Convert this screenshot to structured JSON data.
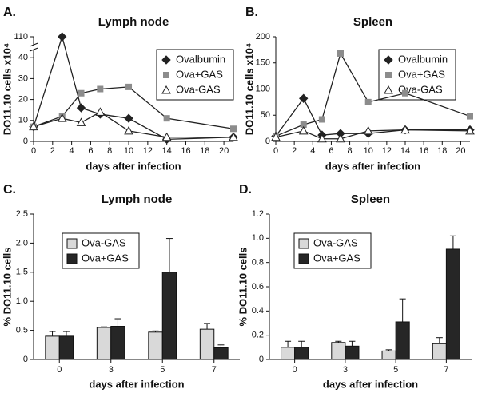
{
  "chart_data": [
    {
      "type": "line",
      "panel_label": "A.",
      "title": "Lymph node",
      "xlabel": "days after infection",
      "ylabel": "DO11.10 cells x10⁴",
      "x": [
        0,
        3,
        5,
        7,
        10,
        14,
        21
      ],
      "xlim": [
        0,
        21
      ],
      "xticks": [
        0,
        2,
        4,
        6,
        8,
        10,
        12,
        14,
        16,
        18,
        20
      ],
      "ylim": [
        0,
        110
      ],
      "yticks": [
        0,
        10,
        20,
        30,
        40,
        110
      ],
      "ybreak": [
        45,
        105
      ],
      "legend": "top right",
      "series": [
        {
          "name": "Ovalbumin",
          "color": "#222222",
          "marker": "diamond",
          "values": [
            7,
            110,
            16,
            13,
            11,
            1,
            2
          ]
        },
        {
          "name": "Ova+GAS",
          "color": "#8c8c8c",
          "marker": "square",
          "values": [
            7,
            12,
            23,
            25,
            26,
            11,
            6
          ]
        },
        {
          "name": "Ova-GAS",
          "color": "#ffffff",
          "marker": "triangle",
          "values": [
            7,
            11,
            9,
            14,
            5,
            2,
            2
          ]
        }
      ]
    },
    {
      "type": "line",
      "panel_label": "B.",
      "title": "Spleen",
      "xlabel": "days after infection",
      "ylabel": "DO11.10 cells x10⁴",
      "x": [
        0,
        3,
        5,
        7,
        10,
        14,
        21
      ],
      "xlim": [
        0,
        21
      ],
      "xticks": [
        0,
        2,
        4,
        6,
        8,
        10,
        12,
        14,
        16,
        18,
        20
      ],
      "ylim": [
        0,
        200
      ],
      "yticks": [
        0,
        50,
        100,
        150,
        200
      ],
      "legend": "top right",
      "series": [
        {
          "name": "Ovalbumin",
          "color": "#222222",
          "marker": "diamond",
          "values": [
            10,
            82,
            12,
            15,
            15,
            22,
            22
          ]
        },
        {
          "name": "Ova+GAS",
          "color": "#8c8c8c",
          "marker": "square",
          "values": [
            10,
            32,
            42,
            168,
            75,
            92,
            48
          ]
        },
        {
          "name": "Ova-GAS",
          "color": "#ffffff",
          "marker": "triangle",
          "values": [
            8,
            20,
            5,
            5,
            20,
            22,
            20
          ]
        }
      ]
    },
    {
      "type": "bar",
      "panel_label": "C.",
      "title": "Lymph node",
      "xlabel": "days after infection",
      "ylabel": "% DO11.10 cells",
      "categories": [
        "0",
        "3",
        "5",
        "7"
      ],
      "ylim": [
        0,
        2.5
      ],
      "yticks": [
        0,
        0.5,
        {
          "value": 1,
          "label": "1.0"
        },
        1.5,
        {
          "value": 2,
          "label": "2.0"
        },
        2.5
      ],
      "legend": "top left",
      "series": [
        {
          "name": "Ova-GAS",
          "color": "#d9d9d9",
          "values": [
            0.4,
            0.55,
            0.47,
            0.52
          ],
          "errors": [
            0.08,
            0.01,
            0.02,
            0.1
          ]
        },
        {
          "name": "Ova+GAS",
          "color": "#262626",
          "values": [
            0.4,
            0.57,
            1.5,
            0.2
          ],
          "errors": [
            0.08,
            0.13,
            0.58,
            0.05
          ]
        }
      ]
    },
    {
      "type": "bar",
      "panel_label": "D.",
      "title": "Spleen",
      "xlabel": "days after infection",
      "ylabel": "% DO11.10 cells",
      "categories": [
        "0",
        "3",
        "5",
        "7"
      ],
      "ylim": [
        0,
        1.2
      ],
      "yticks": [
        0,
        0.2,
        0.4,
        0.6,
        0.8,
        {
          "value": 1,
          "label": "1.0"
        },
        1.2
      ],
      "legend": "top left",
      "series": [
        {
          "name": "Ova-GAS",
          "color": "#d9d9d9",
          "values": [
            0.1,
            0.14,
            0.07,
            0.13
          ],
          "errors": [
            0.05,
            0.01,
            0.01,
            0.05
          ]
        },
        {
          "name": "Ova+GAS",
          "color": "#262626",
          "values": [
            0.1,
            0.11,
            0.31,
            0.91
          ],
          "errors": [
            0.05,
            0.04,
            0.19,
            0.11
          ]
        }
      ]
    }
  ]
}
